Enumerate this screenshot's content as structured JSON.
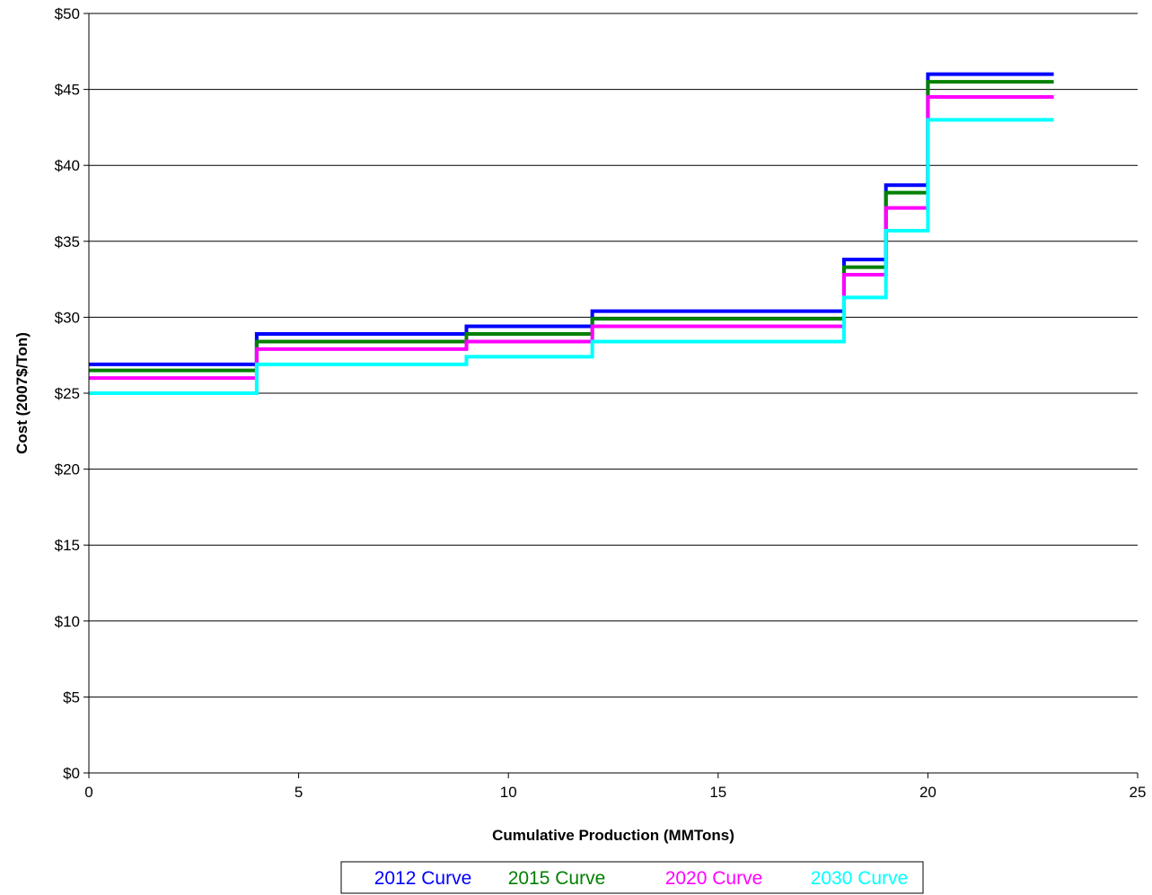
{
  "chart_data": {
    "type": "line",
    "step": true,
    "xlabel": "Cumulative Production (MMTons)",
    "ylabel": "Cost (2007$/Ton)",
    "xlim": [
      0,
      25
    ],
    "ylim": [
      0,
      50
    ],
    "x_ticks": [
      0,
      5,
      10,
      15,
      20,
      25
    ],
    "x_tick_labels": [
      "0",
      "5",
      "10",
      "15",
      "20",
      "25"
    ],
    "y_ticks": [
      0,
      5,
      10,
      15,
      20,
      25,
      30,
      35,
      40,
      45,
      50
    ],
    "y_tick_labels": [
      "$0",
      "$5",
      "$10",
      "$15",
      "$20",
      "$25",
      "$30",
      "$35",
      "$40",
      "$45",
      "$50"
    ],
    "grid": "horizontal",
    "legend_position": "bottom",
    "series": [
      {
        "name": "2012 Curve",
        "color": "#0000ff",
        "steps": [
          {
            "x0": 0,
            "x1": 4,
            "y": 26.9
          },
          {
            "x0": 4,
            "x1": 9,
            "y": 28.9
          },
          {
            "x0": 9,
            "x1": 12,
            "y": 29.4
          },
          {
            "x0": 12,
            "x1": 18,
            "y": 30.4
          },
          {
            "x0": 18,
            "x1": 19,
            "y": 33.8
          },
          {
            "x0": 19,
            "x1": 20,
            "y": 38.7
          },
          {
            "x0": 20,
            "x1": 23,
            "y": 46.0
          }
        ]
      },
      {
        "name": "2015 Curve",
        "color": "#008000",
        "steps": [
          {
            "x0": 0,
            "x1": 4,
            "y": 26.5
          },
          {
            "x0": 4,
            "x1": 9,
            "y": 28.4
          },
          {
            "x0": 9,
            "x1": 12,
            "y": 28.9
          },
          {
            "x0": 12,
            "x1": 18,
            "y": 29.9
          },
          {
            "x0": 18,
            "x1": 19,
            "y": 33.3
          },
          {
            "x0": 19,
            "x1": 20,
            "y": 38.2
          },
          {
            "x0": 20,
            "x1": 23,
            "y": 45.5
          }
        ]
      },
      {
        "name": "2020 Curve",
        "color": "#ff00ff",
        "steps": [
          {
            "x0": 0,
            "x1": 4,
            "y": 26.0
          },
          {
            "x0": 4,
            "x1": 9,
            "y": 27.9
          },
          {
            "x0": 9,
            "x1": 12,
            "y": 28.4
          },
          {
            "x0": 12,
            "x1": 18,
            "y": 29.4
          },
          {
            "x0": 18,
            "x1": 19,
            "y": 32.8
          },
          {
            "x0": 19,
            "x1": 20,
            "y": 37.2
          },
          {
            "x0": 20,
            "x1": 23,
            "y": 44.5
          }
        ]
      },
      {
        "name": "2030 Curve",
        "color": "#00ffff",
        "steps": [
          {
            "x0": 0,
            "x1": 4,
            "y": 25.0
          },
          {
            "x0": 4,
            "x1": 9,
            "y": 26.9
          },
          {
            "x0": 9,
            "x1": 12,
            "y": 27.4
          },
          {
            "x0": 12,
            "x1": 18,
            "y": 28.4
          },
          {
            "x0": 18,
            "x1": 19,
            "y": 31.3
          },
          {
            "x0": 19,
            "x1": 20,
            "y": 35.7
          },
          {
            "x0": 20,
            "x1": 23,
            "y": 43.0
          }
        ]
      }
    ]
  }
}
